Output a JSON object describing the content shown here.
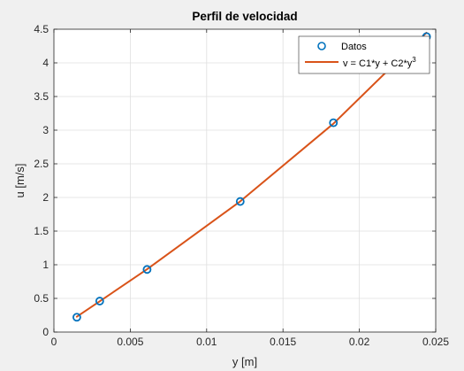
{
  "chart_data": {
    "type": "line",
    "title": "Perfil de velocidad",
    "xlabel": "y [m]",
    "ylabel": "u [m/s]",
    "xlim": [
      0,
      0.025
    ],
    "ylim": [
      0,
      4.5
    ],
    "xticks": [
      0,
      0.005,
      0.01,
      0.015,
      0.02,
      0.025
    ],
    "xtick_labels": [
      "0",
      "0.005",
      "0.01",
      "0.015",
      "0.02",
      "0.025"
    ],
    "yticks": [
      0,
      0.5,
      1,
      1.5,
      2,
      2.5,
      3,
      3.5,
      4,
      4.5
    ],
    "ytick_labels": [
      "0",
      "0.5",
      "1",
      "1.5",
      "2",
      "2.5",
      "3",
      "3.5",
      "4",
      "4.5"
    ],
    "grid": true,
    "legend_position": "top-right",
    "series": [
      {
        "name": "Datos",
        "kind": "markers",
        "marker": "circle",
        "color": "#0072bd",
        "x": [
          0.0015,
          0.003,
          0.0061,
          0.0122,
          0.0183,
          0.0244
        ],
        "y": [
          0.22,
          0.46,
          0.93,
          1.94,
          3.11,
          4.39
        ]
      },
      {
        "name": "v = C1*y + C2*y",
        "name_superscript": "3",
        "kind": "line",
        "color": "#d95319",
        "x": [
          0.0015,
          0.003,
          0.0061,
          0.0122,
          0.0183,
          0.0244
        ],
        "y": [
          0.2279,
          0.4568,
          0.9331,
          1.9427,
          3.0959,
          4.4485
        ]
      }
    ]
  }
}
